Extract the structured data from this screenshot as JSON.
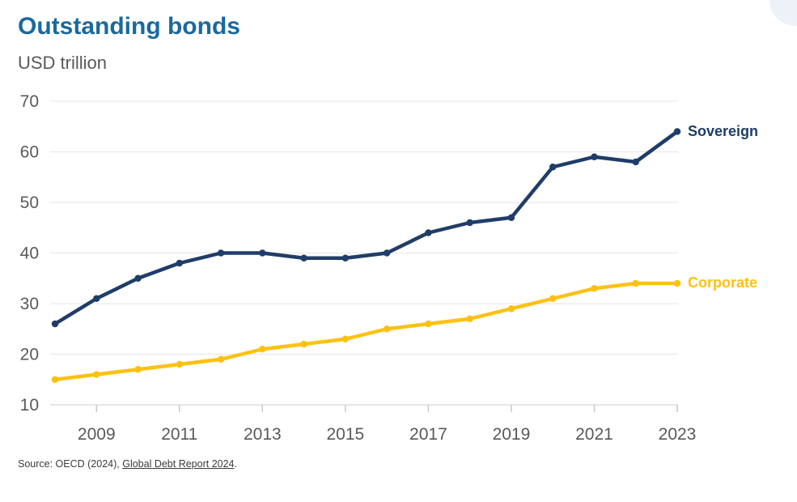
{
  "header": {
    "title": "Outstanding bonds",
    "subtitle": "USD trillion"
  },
  "source": {
    "prefix": "Source: OECD (2024), ",
    "link_text": "Global Debt Report 2024",
    "suffix": "."
  },
  "colors": {
    "title": "#1a699e",
    "subtitle": "#595959",
    "axis_text": "#595959",
    "gridline": "#e9e9e9",
    "axis_line": "#d6d6d6",
    "tick": "#c9c9c9",
    "source_text": "#3b3b3b",
    "sovereign": "#1f3d68",
    "corporate": "#fcc113"
  },
  "chart_data": {
    "type": "line",
    "title": "Outstanding bonds",
    "ylabel": "USD trillion",
    "x": [
      2008,
      2009,
      2010,
      2011,
      2012,
      2013,
      2014,
      2015,
      2016,
      2017,
      2018,
      2019,
      2020,
      2021,
      2022,
      2023
    ],
    "series": [
      {
        "name": "Sovereign",
        "color": "#1f3d68",
        "values": [
          26,
          31,
          35,
          38,
          40,
          40,
          39,
          39,
          40,
          44,
          46,
          47,
          57,
          59,
          58,
          64
        ]
      },
      {
        "name": "Corporate",
        "color": "#fcc113",
        "values": [
          15,
          16,
          17,
          18,
          19,
          21,
          22,
          23,
          25,
          26,
          27,
          29,
          31,
          33,
          34,
          34
        ]
      }
    ],
    "ylim": [
      10,
      70
    ],
    "yticks": [
      10,
      20,
      30,
      40,
      50,
      60,
      70
    ],
    "xticks_labeled": [
      2009,
      2011,
      2013,
      2015,
      2017,
      2019,
      2021,
      2023
    ],
    "grid": "horizontal-only",
    "legend_position": "labels-at-right-end-of-lines",
    "markers": "point-dots-on-line"
  }
}
